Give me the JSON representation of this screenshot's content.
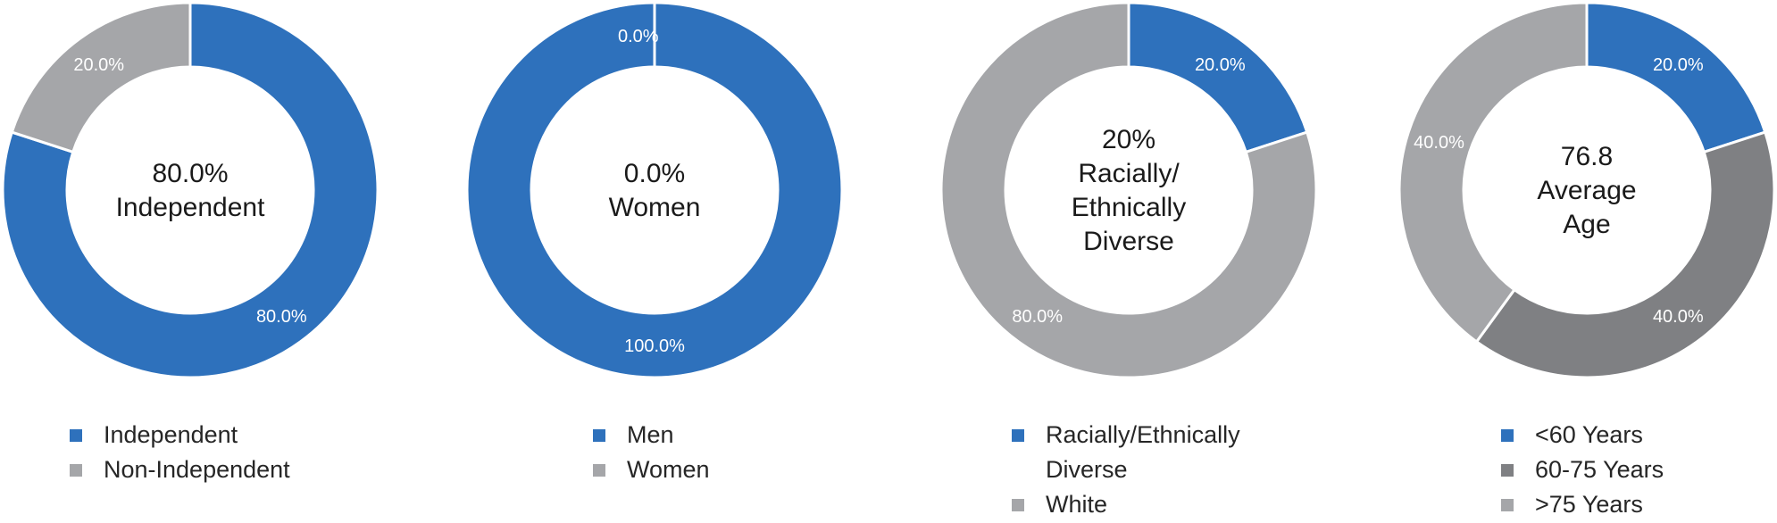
{
  "colors": {
    "blue": "#2E71BC",
    "light_gray": "#A5A6A9",
    "dark_gray": "#7F8083"
  },
  "chart_data": [
    {
      "type": "donut",
      "id": "independence",
      "center_lines": [
        "80.0%",
        "Independent"
      ],
      "slices": [
        {
          "name": "Independent",
          "value": 80.0,
          "label": "80.0%",
          "color": "#2E71BC"
        },
        {
          "name": "Non-Independent",
          "value": 20.0,
          "label": "20.0%",
          "color": "#A5A6A9"
        }
      ],
      "legend": [
        {
          "text": "Independent",
          "color": "#2E71BC"
        },
        {
          "text": "Non-Independent",
          "color": "#A5A6A9"
        }
      ]
    },
    {
      "type": "donut",
      "id": "gender",
      "center_lines": [
        "0.0%",
        "Women"
      ],
      "slices": [
        {
          "name": "Men",
          "value": 100.0,
          "label": "100.0%",
          "color": "#2E71BC"
        },
        {
          "name": "Women",
          "value": 0.0,
          "label": "0.0%",
          "color": "#A5A6A9"
        }
      ],
      "legend": [
        {
          "text": "Men",
          "color": "#2E71BC"
        },
        {
          "text": "Women",
          "color": "#A5A6A9"
        }
      ]
    },
    {
      "type": "donut",
      "id": "diversity",
      "center_lines": [
        "20%",
        "Racially/",
        "Ethnically",
        "Diverse"
      ],
      "slices": [
        {
          "name": "Racially/Ethnically Diverse",
          "value": 20.0,
          "label": "20.0%",
          "color": "#2E71BC"
        },
        {
          "name": "White",
          "value": 80.0,
          "label": "80.0%",
          "color": "#A5A6A9"
        }
      ],
      "legend": [
        {
          "text": "Racially/Ethnically Diverse",
          "color": "#2E71BC"
        },
        {
          "text": "White",
          "color": "#A5A6A9"
        }
      ]
    },
    {
      "type": "donut",
      "id": "age",
      "center_lines": [
        "76.8",
        "Average",
        "Age"
      ],
      "slices": [
        {
          "name": "<60 Years",
          "value": 20.0,
          "label": "20.0%",
          "color": "#2E71BC"
        },
        {
          "name": "60-75 Years",
          "value": 40.0,
          "label": "40.0%",
          "color": "#7F8083"
        },
        {
          "name": ">75 Years",
          "value": 40.0,
          "label": "40.0%",
          "color": "#A5A6A9"
        }
      ],
      "legend": [
        {
          "text": "<60 Years",
          "color": "#2E71BC"
        },
        {
          "text": "60-75 Years",
          "color": "#7F8083"
        },
        {
          "text": ">75 Years",
          "color": "#A5A6A9"
        }
      ]
    }
  ]
}
